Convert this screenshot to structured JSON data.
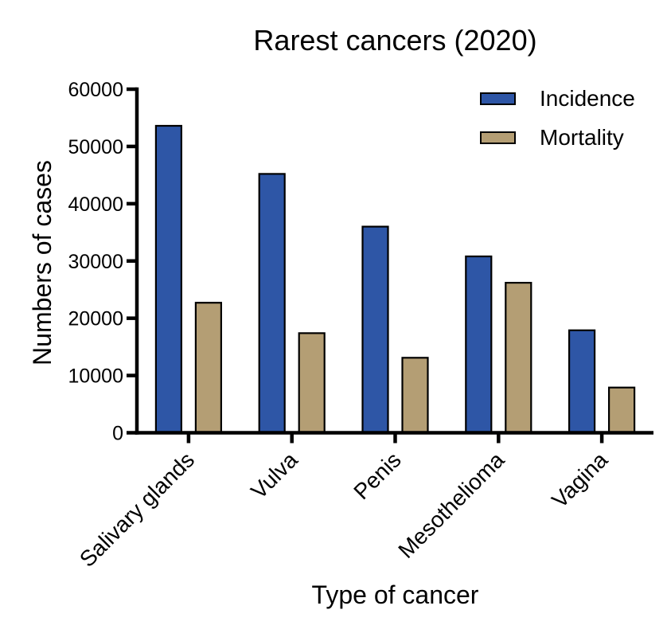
{
  "chart": {
    "title": "Rarest cancers (2020)",
    "x_axis_label": "Type of cancer",
    "y_axis_label": "Numbers of cases",
    "legend": [
      {
        "label": "Incidence",
        "color": "#2e56a6"
      },
      {
        "label": "Mortality",
        "color": "#b49e74"
      }
    ]
  },
  "chart_data": {
    "type": "bar",
    "title": "Rarest cancers (2020)",
    "xlabel": "Type of cancer",
    "ylabel": "Numbers of cases",
    "categories": [
      "Salivary glands",
      "Vulva",
      "Penis",
      "Mesothelioma",
      "Vagina"
    ],
    "series": [
      {
        "name": "Incidence",
        "color": "#2e56a6",
        "values": [
          53600,
          45200,
          36000,
          30800,
          17900
        ]
      },
      {
        "name": "Mortality",
        "color": "#b49e74",
        "values": [
          22700,
          17400,
          13100,
          26200,
          7900
        ]
      }
    ],
    "ylim": [
      0,
      60000
    ],
    "ytick_step": 10000,
    "yticks": [
      0,
      10000,
      20000,
      30000,
      40000,
      50000,
      60000
    ],
    "grid": false,
    "legend_position": "top-right",
    "bar_border_color": "#000000",
    "axis_color": "#000000"
  }
}
